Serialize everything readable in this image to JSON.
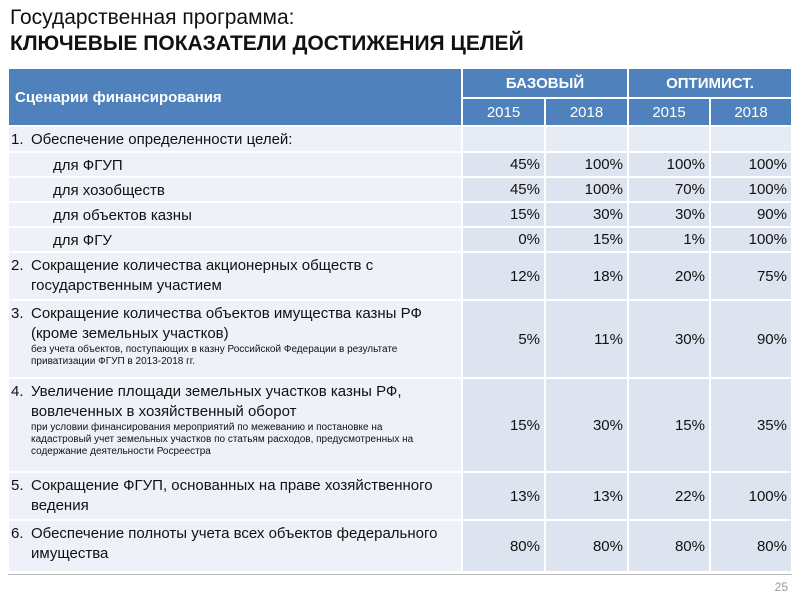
{
  "header": {
    "title": "Государственная программа:",
    "subtitle": "КЛЮЧЕВЫЕ ПОКАЗАТЕЛИ ДОСТИЖЕНИЯ ЦЕЛЕЙ"
  },
  "table": {
    "corner": "Сценарии финансирования",
    "groups": [
      "БАЗОВЫЙ",
      "ОПТИМИСТ."
    ],
    "years": [
      "2015",
      "2018",
      "2015",
      "2018"
    ],
    "rows": [
      {
        "number": "1.",
        "label": "Обеспечение определенности целей:"
      },
      {
        "label": "для ФГУП",
        "values": [
          "45%",
          "100%",
          "100%",
          "100%"
        ]
      },
      {
        "label": "для хозобществ",
        "values": [
          "45%",
          "100%",
          "70%",
          "100%"
        ]
      },
      {
        "label": "для объектов казны",
        "values": [
          "15%",
          "30%",
          "30%",
          "90%"
        ]
      },
      {
        "label": "для ФГУ",
        "values": [
          "0%",
          "15%",
          "1%",
          "100%"
        ]
      },
      {
        "number": "2.",
        "label": "Сокращение количества акционерных обществ с государственным участием",
        "values": [
          "12%",
          "18%",
          "20%",
          "75%"
        ]
      },
      {
        "number": "3.",
        "label": "Сокращение количества объектов имущества казны РФ (кроме земельных участков)",
        "note": "без учета объектов, поступающих в казну Российской Федерации в результате приватизации ФГУП в 2013-2018 гг.",
        "values": [
          "5%",
          "11%",
          "30%",
          "90%"
        ]
      },
      {
        "number": "4.",
        "label": "Увеличение площади земельных участков казны РФ, вовлеченных в хозяйственный оборот",
        "note": "при условии финансирования мероприятий по межеванию и постановке на кадастровый учет земельных участков по статьям расходов, предусмотренных на содержание деятельности Росреестра",
        "values": [
          "15%",
          "30%",
          "15%",
          "35%"
        ]
      },
      {
        "number": "5.",
        "label": "Сокращение ФГУП, основанных на праве хозяйственного ведения",
        "values": [
          "13%",
          "13%",
          "22%",
          "100%"
        ]
      },
      {
        "number": "6.",
        "label": "Обеспечение полноты учета всех объектов федерального имущества",
        "values": [
          "80%",
          "80%",
          "80%",
          "80%"
        ]
      }
    ]
  },
  "page_number": "25"
}
